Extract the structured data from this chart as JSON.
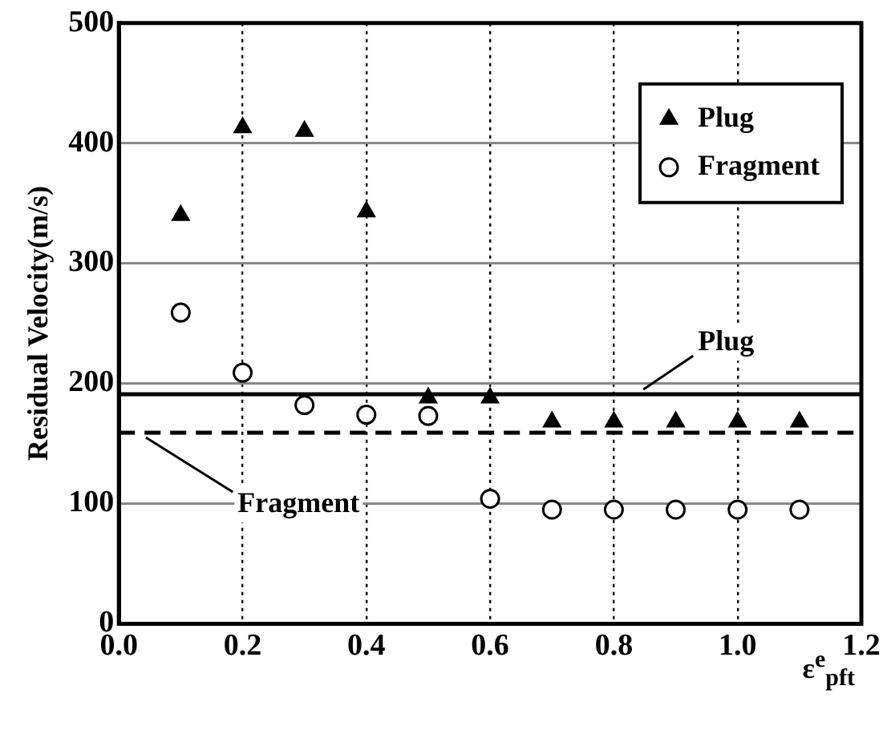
{
  "chart_data": {
    "type": "scatter",
    "xlabel": "ε$^{e}$$_{pft}$",
    "ylabel": "Residual Velocity(m/s)",
    "x": [
      0.1,
      0.2,
      0.3,
      0.4,
      0.5,
      0.6,
      0.7,
      0.8,
      0.9,
      1.0,
      1.1
    ],
    "series": [
      {
        "name": "Plug",
        "color": "#000000",
        "marker": "triangle",
        "values": [
          340,
          413,
          410,
          343,
          188,
          188,
          168,
          168,
          168,
          168,
          168
        ]
      },
      {
        "name": "Fragment",
        "color": "#000000",
        "marker": "circle",
        "values": [
          259,
          209,
          182,
          174,
          173,
          104,
          95,
          95,
          95,
          95,
          95
        ]
      }
    ],
    "xlim": [
      0,
      1.2
    ],
    "xticks": [
      {
        "value": 0,
        "label": "0.0"
      },
      {
        "value": 0.2,
        "label": "0.2"
      },
      {
        "value": 0.4,
        "label": "0.4"
      },
      {
        "value": 0.6,
        "label": "0.6"
      },
      {
        "value": 0.8,
        "label": "0.8"
      },
      {
        "value": 1.0,
        "label": "1.0"
      },
      {
        "value": 1.2,
        "label": "1.2"
      }
    ],
    "ylim": [
      0,
      500
    ],
    "yticks": [
      0,
      100,
      200,
      300,
      400,
      500
    ],
    "ref_lines": [
      {
        "axis": "y",
        "value": 191,
        "label": "Plug",
        "line_style": "solid"
      },
      {
        "axis": "y",
        "value": 159,
        "label": "Fragment",
        "line_style": "dashed"
      }
    ],
    "grid": true,
    "legend": "top right"
  }
}
